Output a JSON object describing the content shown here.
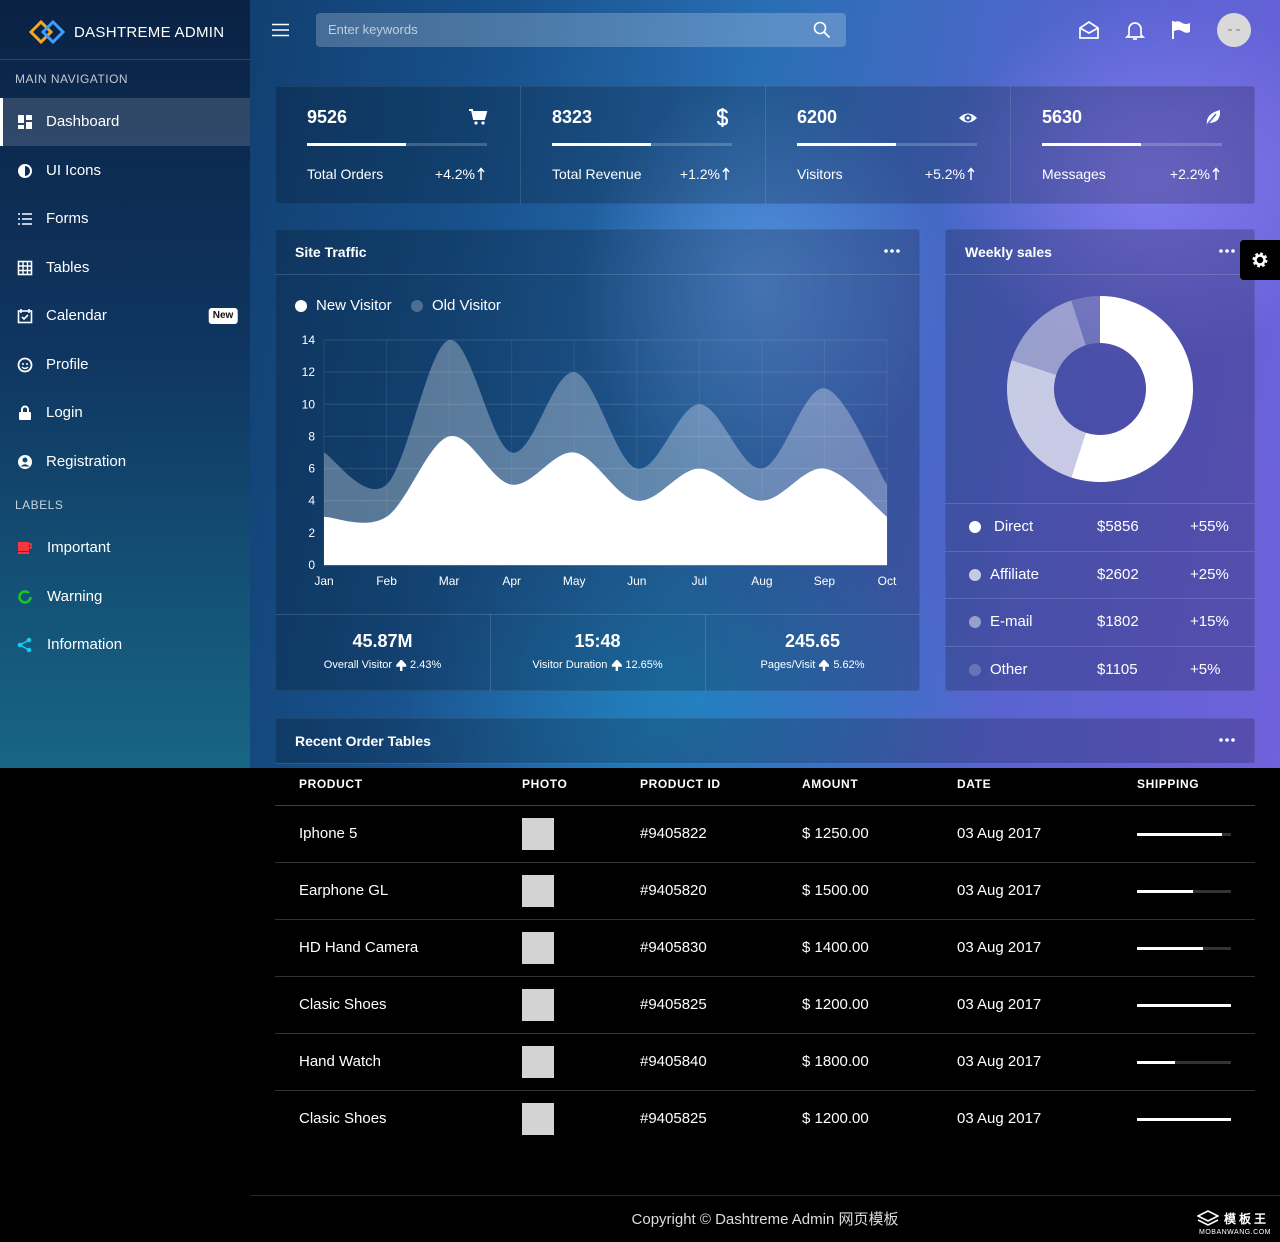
{
  "brand": "DASHTREME ADMIN",
  "search_placeholder": "Enter keywords",
  "navigation": {
    "title": "MAIN NAVIGATION",
    "items": [
      {
        "label": "Dashboard",
        "active": true
      },
      {
        "label": "UI Icons"
      },
      {
        "label": "Forms"
      },
      {
        "label": "Tables"
      },
      {
        "label": "Calendar",
        "badge": "New"
      },
      {
        "label": "Profile"
      },
      {
        "label": "Login"
      },
      {
        "label": "Registration"
      }
    ]
  },
  "labels": {
    "title": "LABELS",
    "items": [
      {
        "label": "Important",
        "color": "#f43643"
      },
      {
        "label": "Warning",
        "color": "#15ca20"
      },
      {
        "label": "Information",
        "color": "#0dceec"
      }
    ]
  },
  "stats": [
    {
      "value": 9526,
      "label": "Total Orders",
      "change": "+4.2%",
      "progress": 55
    },
    {
      "value": 8323,
      "label": "Total Revenue",
      "change": "+1.2%",
      "progress": 55
    },
    {
      "value": 6200,
      "label": "Visitors",
      "change": "+5.2%",
      "progress": 55
    },
    {
      "value": 5630,
      "label": "Messages",
      "change": "+2.2%",
      "progress": 55
    }
  ],
  "chart_data": [
    {
      "type": "area",
      "title": "Site Traffic",
      "categories": [
        "Jan",
        "Feb",
        "Mar",
        "Apr",
        "May",
        "Jun",
        "Jul",
        "Aug",
        "Sep",
        "Oct"
      ],
      "series": [
        {
          "name": "New Visitor",
          "color": "#ffffff",
          "values": [
            3,
            3,
            8,
            5,
            7,
            4,
            6,
            4,
            6,
            3
          ]
        },
        {
          "name": "Old Visitor",
          "color": "rgba(255,255,255,0.3)",
          "values": [
            7,
            5,
            14,
            7,
            12,
            6,
            10,
            6,
            11,
            5
          ]
        }
      ],
      "ylim": [
        0,
        14
      ],
      "yticks": [
        0,
        2,
        4,
        6,
        8,
        10,
        12,
        14
      ],
      "grid": true
    },
    {
      "type": "doughnut",
      "title": "Weekly sales",
      "categories": [
        "Direct",
        "Affiliate",
        "E-mail",
        "Other"
      ],
      "values": [
        55,
        25,
        15,
        5
      ],
      "value_labels": [
        "+55%",
        "+25%",
        "+15%",
        "+5%"
      ],
      "amounts": [
        "$5856",
        "$2602",
        "$1802",
        "$1105"
      ],
      "colors": [
        "#ffffff",
        "rgba(255,255,255,0.7)",
        "rgba(255,255,255,0.45)",
        "rgba(255,255,255,0.2)"
      ]
    }
  ],
  "traffic_summary": [
    {
      "value": "45.87M",
      "label": "Overall Visitor",
      "change": "2.43%"
    },
    {
      "value": "15:48",
      "label": "Visitor Duration",
      "change": "12.65%"
    },
    {
      "value": "245.65",
      "label": "Pages/Visit",
      "change": "5.62%"
    }
  ],
  "orders": {
    "title": "Recent Order Tables",
    "columns": [
      "PRODUCT",
      "PHOTO",
      "PRODUCT ID",
      "AMOUNT",
      "DATE",
      "SHIPPING"
    ],
    "rows": [
      {
        "product": "Iphone 5",
        "id": "#9405822",
        "amount": "$ 1250.00",
        "date": "03 Aug 2017",
        "shipping": 90
      },
      {
        "product": "Earphone GL",
        "id": "#9405820",
        "amount": "$ 1500.00",
        "date": "03 Aug 2017",
        "shipping": 60
      },
      {
        "product": "HD Hand Camera",
        "id": "#9405830",
        "amount": "$ 1400.00",
        "date": "03 Aug 2017",
        "shipping": 70
      },
      {
        "product": "Clasic Shoes",
        "id": "#9405825",
        "amount": "$ 1200.00",
        "date": "03 Aug 2017",
        "shipping": 100
      },
      {
        "product": "Hand Watch",
        "id": "#9405840",
        "amount": "$ 1800.00",
        "date": "03 Aug 2017",
        "shipping": 40
      },
      {
        "product": "Clasic Shoes",
        "id": "#9405825",
        "amount": "$ 1200.00",
        "date": "03 Aug 2017",
        "shipping": 100
      }
    ]
  },
  "footer": "Copyright © Dashtreme Admin 网页模板",
  "watermark": {
    "logo": "模板王",
    "site": "MOBANWANG.COM"
  }
}
